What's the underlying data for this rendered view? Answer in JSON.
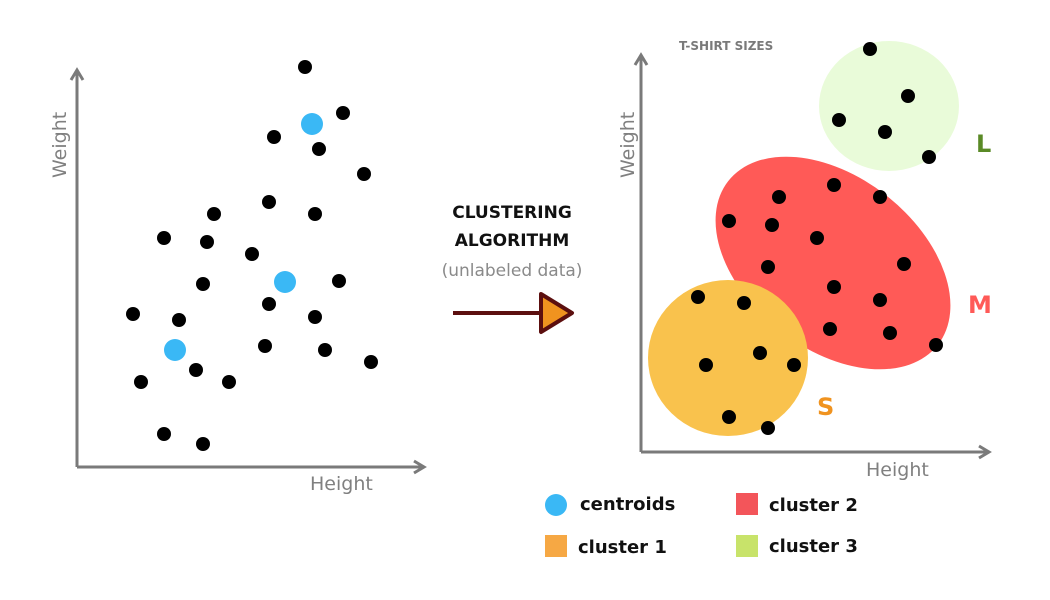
{
  "left_plot": {
    "x_label": "Height",
    "y_label": "Weight"
  },
  "middle": {
    "title_line1": "CLUSTERING",
    "title_line2": "ALGORITHM",
    "subtitle": "(unlabeled data)"
  },
  "right_plot": {
    "title": "T-SHIRT SIZES",
    "x_label": "Height",
    "y_label": "Weight",
    "clusters": [
      {
        "letter": "S",
        "color": "#f9c24d",
        "letter_color": "#f0931f"
      },
      {
        "letter": "M",
        "color": "#ff5a57",
        "letter_color": "#ff5a57"
      },
      {
        "letter": "L",
        "color": "#e9fbd9",
        "letter_color": "#5a8a26"
      }
    ]
  },
  "legend": {
    "centroids": "centroids",
    "cluster1": "cluster 1",
    "cluster2": "cluster 2",
    "cluster3": "cluster 3"
  },
  "colors": {
    "point": "#000000",
    "centroid": "#3ab8f5",
    "axis": "#7a7a7a",
    "arrow_body": "#5c0f0f",
    "arrow_head": "#f0931f",
    "legend_cluster1": "#f6a844",
    "legend_cluster2": "#f3555a",
    "legend_cluster3": "#c8e36a"
  }
}
